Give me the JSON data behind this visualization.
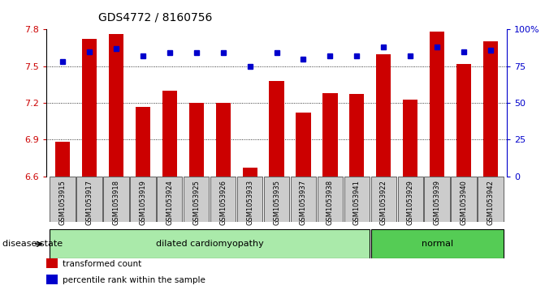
{
  "title": "GDS4772 / 8160756",
  "samples": [
    "GSM1053915",
    "GSM1053917",
    "GSM1053918",
    "GSM1053919",
    "GSM1053924",
    "GSM1053925",
    "GSM1053926",
    "GSM1053933",
    "GSM1053935",
    "GSM1053937",
    "GSM1053938",
    "GSM1053941",
    "GSM1053922",
    "GSM1053929",
    "GSM1053939",
    "GSM1053940",
    "GSM1053942"
  ],
  "bar_values": [
    6.88,
    7.72,
    7.76,
    7.17,
    7.3,
    7.2,
    7.2,
    6.67,
    7.38,
    7.12,
    7.28,
    7.27,
    7.6,
    7.23,
    7.78,
    7.52,
    7.7
  ],
  "percentile_values": [
    78,
    85,
    87,
    82,
    84,
    84,
    84,
    75,
    84,
    80,
    82,
    82,
    88,
    82,
    88,
    85,
    86
  ],
  "bar_color": "#cc0000",
  "percentile_color": "#0000cc",
  "disease_groups": [
    {
      "label": "dilated cardiomyopathy",
      "start": 0,
      "end": 11,
      "color": "#aaeaaa"
    },
    {
      "label": "normal",
      "start": 12,
      "end": 16,
      "color": "#55cc55"
    }
  ],
  "ylim_left": [
    6.6,
    7.8
  ],
  "ylim_right": [
    0,
    100
  ],
  "yticks_left": [
    6.6,
    6.9,
    7.2,
    7.5,
    7.8
  ],
  "yticks_right": [
    0,
    25,
    50,
    75,
    100
  ],
  "ytick_labels_right": [
    "0",
    "25",
    "50",
    "75",
    "100%"
  ],
  "grid_values": [
    6.9,
    7.2,
    7.5
  ],
  "bar_bottom": 6.6,
  "bar_width": 0.55,
  "bar_color_left_axis": "#cc0000",
  "pct_color_right_axis": "#0000cc",
  "tick_label_bg": "#cccccc",
  "legend_items": [
    {
      "label": "transformed count",
      "color": "#cc0000"
    },
    {
      "label": "percentile rank within the sample",
      "color": "#0000cc"
    }
  ],
  "disease_state_label": "disease state"
}
